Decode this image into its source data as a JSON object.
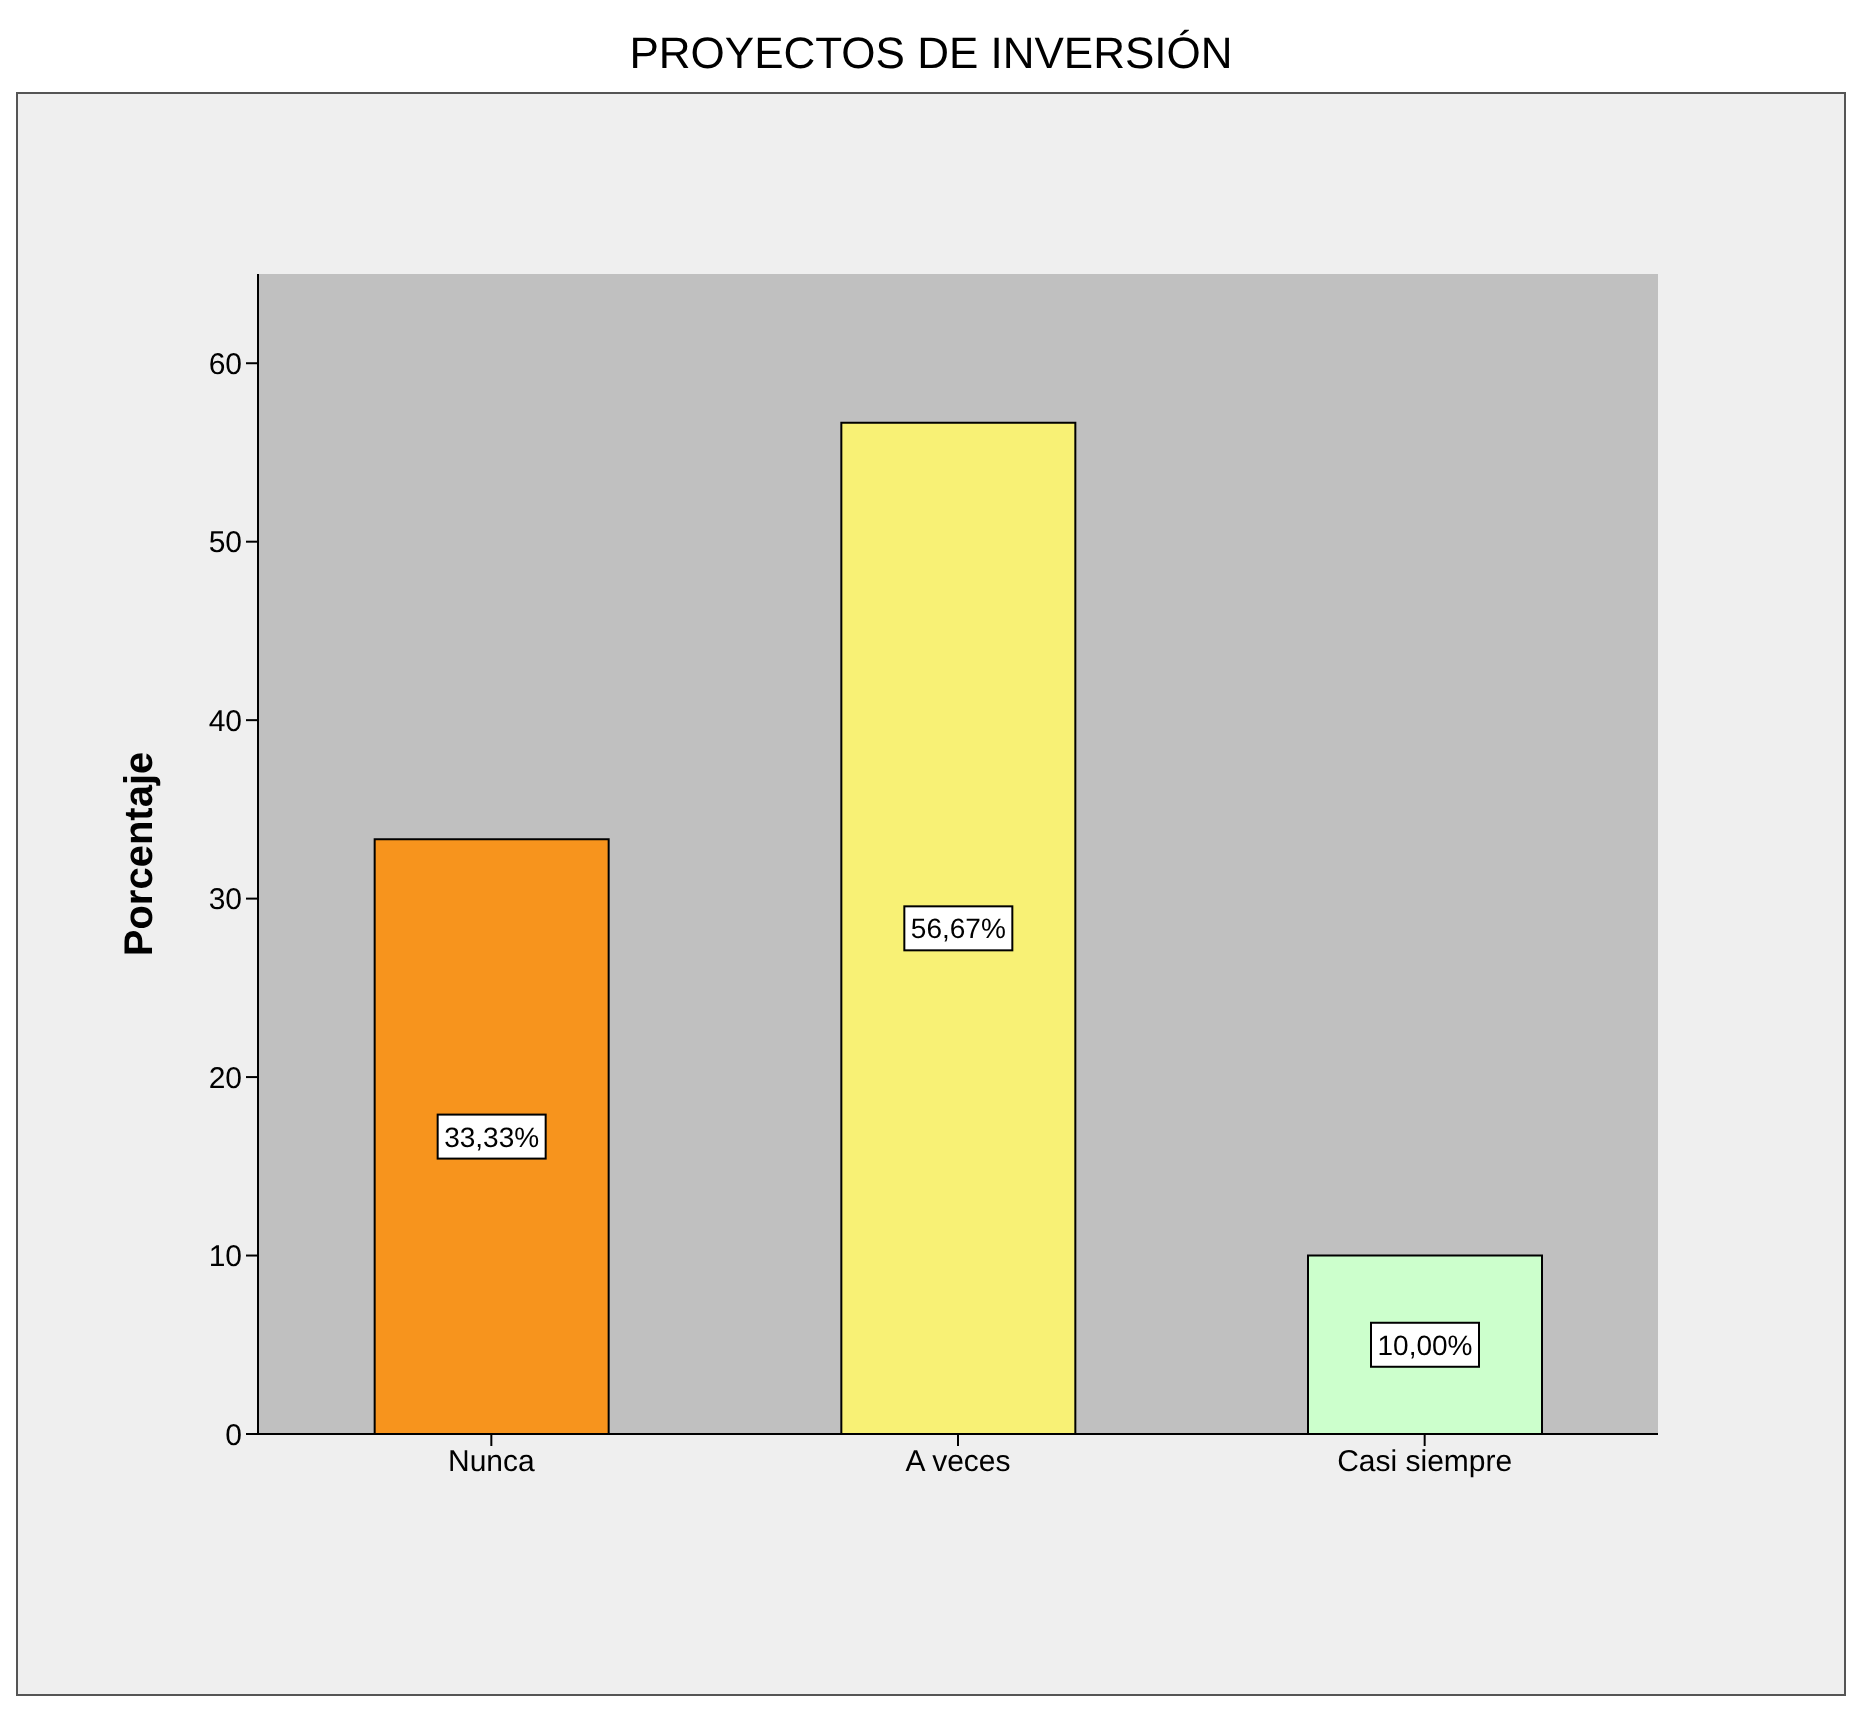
{
  "chart_data": {
    "type": "bar",
    "title": "PROYECTOS DE INVERSIÓN",
    "ylabel": "Porcentaje",
    "categories": [
      "Nunca",
      "A veces",
      "Casi siempre"
    ],
    "values": [
      33.33,
      56.67,
      10.0
    ],
    "colors": [
      "#f7941d",
      "#f8f175",
      "#ccffcc"
    ],
    "value_labels": [
      "33,33%",
      "56,67%",
      "10,00%"
    ],
    "ylim": [
      0,
      65
    ],
    "yticks": [
      0,
      10,
      20,
      30,
      40,
      50,
      60
    ],
    "grid": false
  }
}
